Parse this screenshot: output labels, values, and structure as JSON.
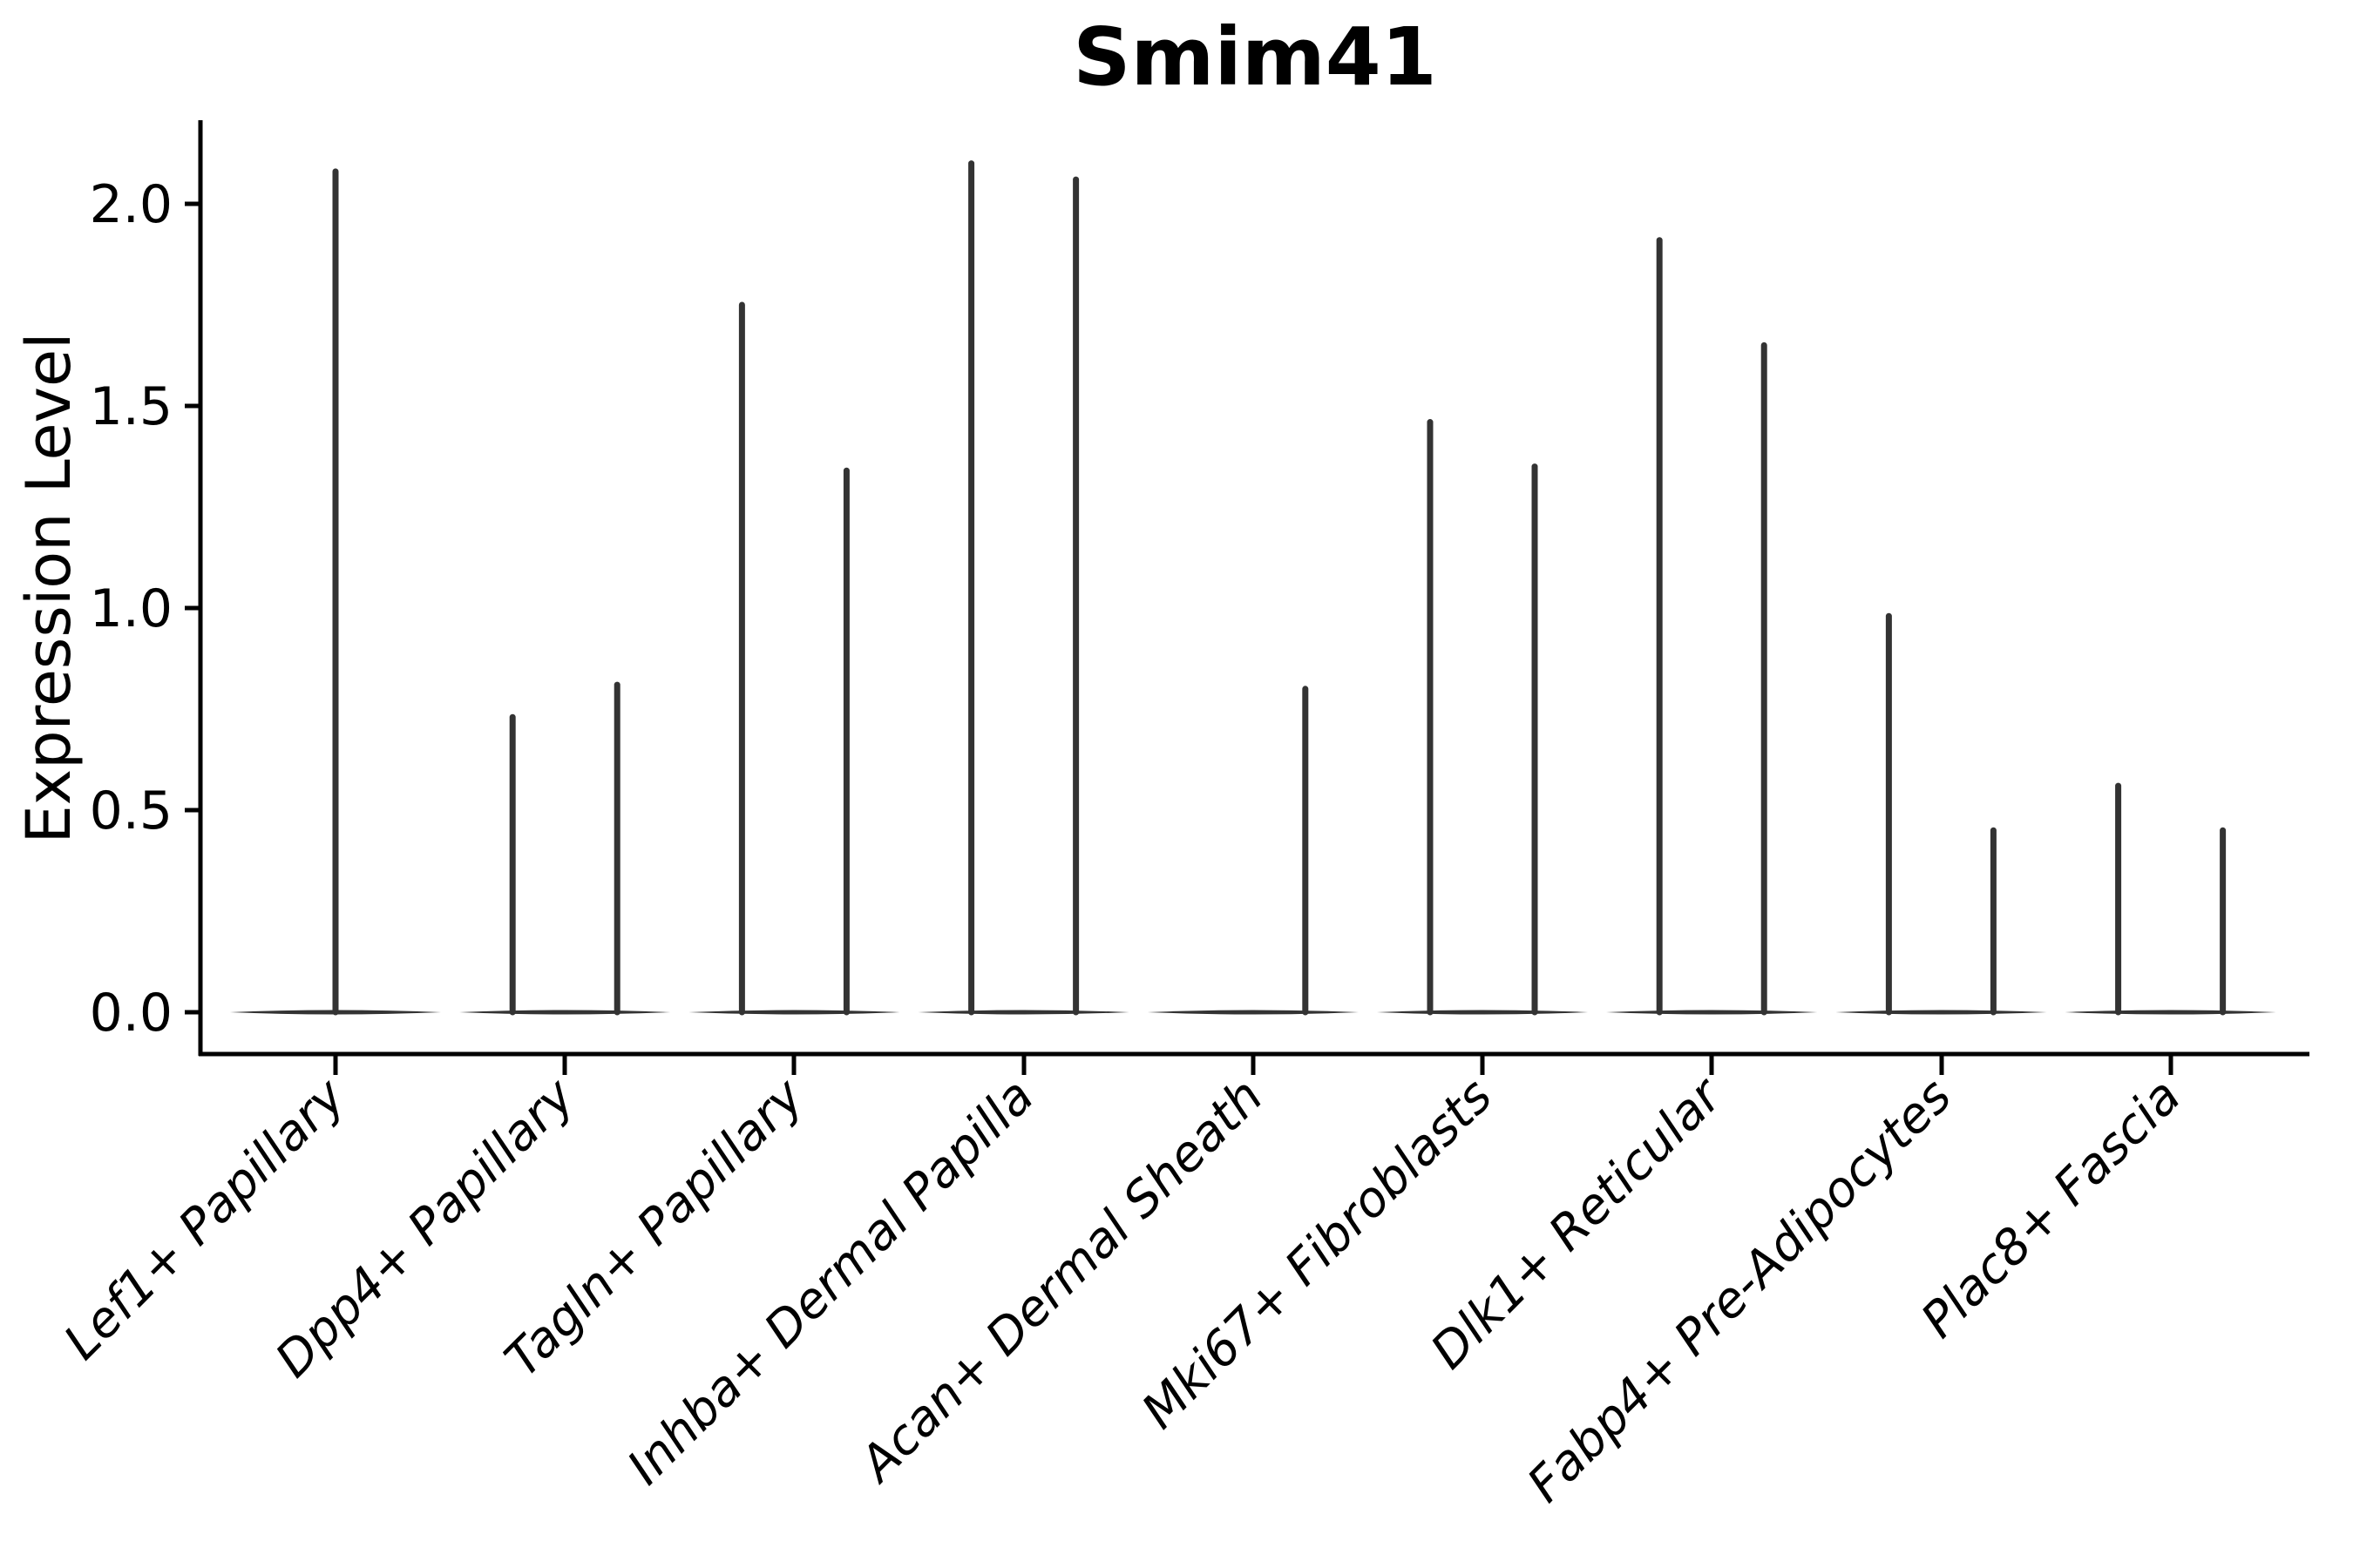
{
  "chart_data": {
    "type": "violin",
    "title": "Smim41",
    "ylabel": "Expression Level",
    "xlabel": "",
    "grid": false,
    "legend": null,
    "axis_color": "#000000",
    "violin_color": "#333333",
    "ylim": [
      -0.1,
      2.2
    ],
    "y_ticks": [
      "0.0",
      "0.5",
      "1.0",
      "1.5",
      "2.0"
    ],
    "y_tick_values": [
      0.0,
      0.5,
      1.0,
      1.5,
      2.0
    ],
    "categories": [
      "Lef1+ Papillary",
      "Dpp4+ Papillary",
      "Tagln+ Papillary",
      "Inhba+ Dermal Papilla",
      "Acan+ Dermal Sheath",
      "Mki67+ Fibroblasts",
      "Dlk1+ Reticular",
      "Fabp4+ Pre-Adipocytes",
      "Plac8+ Fascia"
    ],
    "violins": [
      {
        "category": "Lef1+ Papillary",
        "base_halfwidth_frac": 0.46,
        "spikes": [
          {
            "offset_frac": 0.0,
            "max": 2.08
          }
        ]
      },
      {
        "category": "Dpp4+ Papillary",
        "base_halfwidth_frac": 0.46,
        "spikes": [
          {
            "offset_frac": -0.228,
            "max": 0.73
          },
          {
            "offset_frac": 0.228,
            "max": 0.81
          }
        ]
      },
      {
        "category": "Tagln+ Papillary",
        "base_halfwidth_frac": 0.46,
        "spikes": [
          {
            "offset_frac": -0.228,
            "max": 1.75
          },
          {
            "offset_frac": 0.228,
            "max": 1.34
          }
        ]
      },
      {
        "category": "Inhba+ Dermal Papilla",
        "base_halfwidth_frac": 0.46,
        "spikes": [
          {
            "offset_frac": -0.228,
            "max": 2.1
          },
          {
            "offset_frac": 0.228,
            "max": 2.06
          }
        ]
      },
      {
        "category": "Acan+ Dermal Sheath",
        "base_halfwidth_frac": 0.46,
        "spikes": [
          {
            "offset_frac": 0.228,
            "max": 0.8
          }
        ]
      },
      {
        "category": "Mki67+ Fibroblasts",
        "base_halfwidth_frac": 0.46,
        "spikes": [
          {
            "offset_frac": -0.228,
            "max": 1.46
          },
          {
            "offset_frac": 0.228,
            "max": 1.35
          }
        ]
      },
      {
        "category": "Dlk1+ Reticular",
        "base_halfwidth_frac": 0.46,
        "spikes": [
          {
            "offset_frac": -0.228,
            "max": 1.91
          },
          {
            "offset_frac": 0.228,
            "max": 1.65
          }
        ]
      },
      {
        "category": "Fabp4+ Pre-Adipocytes",
        "base_halfwidth_frac": 0.46,
        "spikes": [
          {
            "offset_frac": -0.228,
            "max": 0.98
          },
          {
            "offset_frac": 0.228,
            "max": 0.45
          }
        ]
      },
      {
        "category": "Plac8+ Fascia",
        "base_halfwidth_frac": 0.46,
        "spikes": [
          {
            "offset_frac": -0.228,
            "max": 0.56
          },
          {
            "offset_frac": 0.228,
            "max": 0.45
          }
        ]
      }
    ]
  }
}
